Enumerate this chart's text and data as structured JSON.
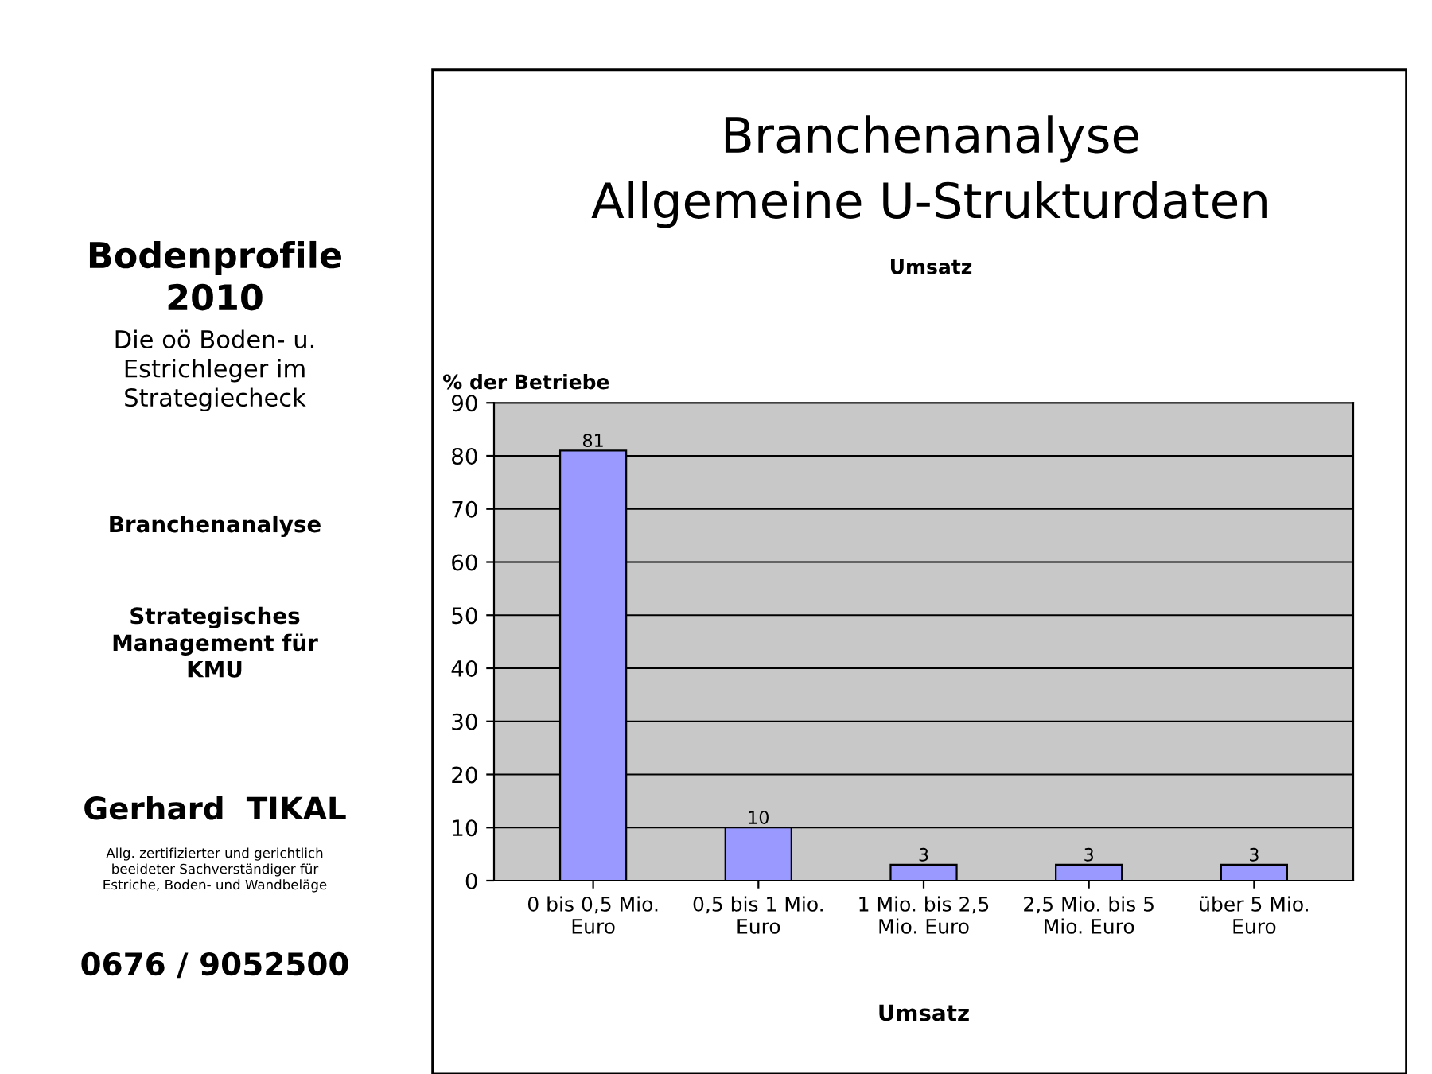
{
  "chart_data": {
    "type": "bar",
    "title": "Branchenanalyse\nAllgemeine U-Strukturdaten",
    "subtitle": "Umsatz",
    "ylabel": "% der Betriebe",
    "xlabel": "Umsatz",
    "categories": [
      "0 bis 0,5 Mio.\nEuro",
      "0,5 bis 1 Mio.\nEuro",
      "1 Mio. bis 2,5\nMio. Euro",
      "2,5 Mio. bis 5\nMio. Euro",
      "über 5 Mio.\nEuro"
    ],
    "values": [
      81,
      10,
      3,
      3,
      3
    ],
    "color": "#9999ff",
    "data_labels": true,
    "ylim": [
      0,
      90
    ],
    "yticks": [
      0,
      10,
      20,
      30,
      40,
      50,
      60,
      70,
      80,
      90
    ],
    "grid": "y",
    "annotations": [
      "Bodenprofile\n2010",
      "Die oö Boden- u.\nEstrichleger im\nStrategiecheck",
      "Branchenanalyse",
      "Strategisches\nManagement für\nKMU",
      "Gerhard  TIKAL",
      "Allg. zertifizierter und gerichtlich\nbeeideter Sachverständiger für\nEstriche, Boden- und Wandbeläge",
      "0676 / 9052500"
    ]
  }
}
